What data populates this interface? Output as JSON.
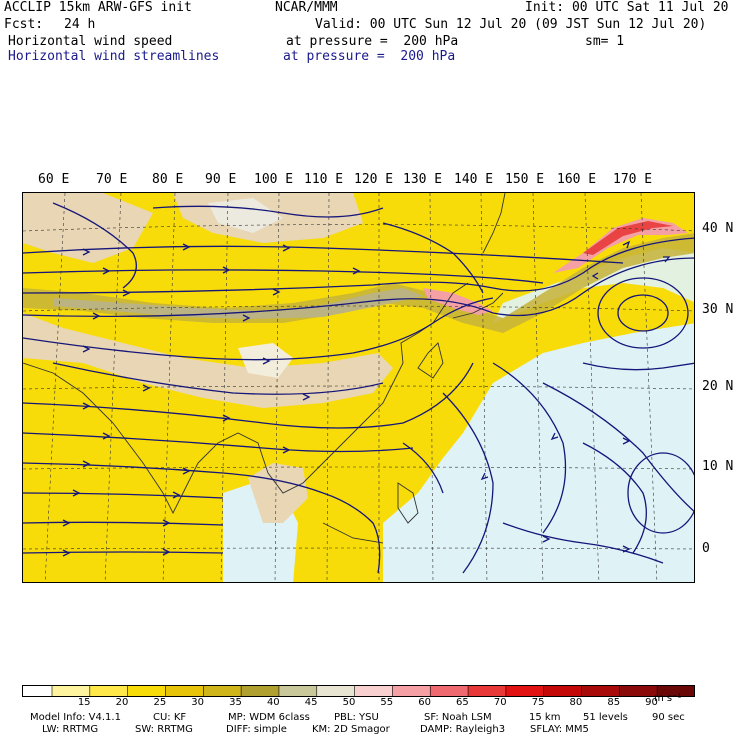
{
  "header": {
    "model": "ACCLIP 15km ARW-GFS init",
    "center": "NCAR/MMM",
    "init": "Init: 00 UTC Sat 11 Jul 20",
    "fcst_label": "Fcst:",
    "fcst_value": "24 h",
    "valid": "Valid: 00 UTC Sun 12 Jul 20 (09 JST Sun 12 Jul 20)",
    "field1": "Horizontal wind speed",
    "field1_level": "at pressure =  200 hPa",
    "sm": "sm= 1",
    "field2": "Horizontal wind streamlines",
    "field2_level": "at pressure =  200 hPa"
  },
  "map": {
    "longitude_labels": [
      "60 E",
      "70 E",
      "80 E",
      "90 E",
      "100 E",
      "110 E",
      "120 E",
      "130 E",
      "140 E",
      "150 E",
      "160 E",
      "170 E"
    ],
    "latitude_labels": [
      "40 N",
      "30 N",
      "20 N",
      "10 N",
      "0"
    ],
    "land_color": "#e9d6b4",
    "ocean_color": "#dff3f7",
    "streamline_color": "#15157a"
  },
  "colorbar": {
    "ticks": [
      "15",
      "20",
      "25",
      "30",
      "35",
      "40",
      "45",
      "50",
      "55",
      "60",
      "65",
      "70",
      "75",
      "80",
      "85",
      "90"
    ],
    "unit": "m s⁻¹",
    "colors": [
      "#ffffff",
      "#fef4a0",
      "#fee84a",
      "#f7dc0a",
      "#e7c40a",
      "#cfb41a",
      "#b0a030",
      "#c8c89a",
      "#e8e6d2",
      "#f8d0d0",
      "#f4a0a4",
      "#ee6a70",
      "#e83838",
      "#e21212",
      "#c40808",
      "#a80a0a",
      "#8a0a0a",
      "#6a0808"
    ]
  },
  "footer": {
    "line1_a": "Model Info: V4.1.1",
    "line1_b": "CU: KF",
    "line1_c": "MP: WDM 6class",
    "line1_d": "PBL: YSU",
    "line1_e": "SF: Noah LSM",
    "line1_f": "15 km",
    "line1_g": "51 levels",
    "line1_h": "90 sec",
    "line2_a": "LW: RRTMG",
    "line2_b": "SW: RRTMG",
    "line2_c": "DIFF: simple",
    "line2_d": "KM: 2D Smagor",
    "line2_e": "DAMP: Rayleigh3",
    "line2_f": "SFLAY: MM5"
  }
}
